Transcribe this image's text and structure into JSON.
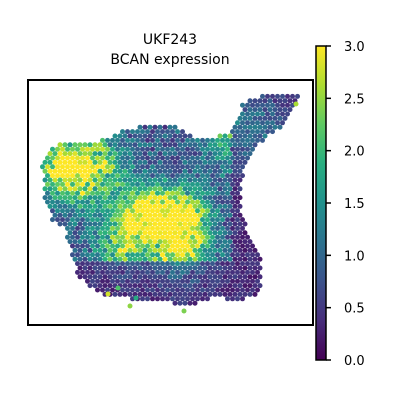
{
  "chart_data": {
    "type": "heatmap",
    "subtype": "spatial hex-spot scatter",
    "title": "UKF243",
    "subtitle": "BCAN expression",
    "colormap": "viridis",
    "color_range": [
      0.0,
      3.0
    ],
    "colorbar_ticks": [
      "0.0",
      "0.5",
      "1.0",
      "1.5",
      "2.0",
      "2.5",
      "3.0"
    ],
    "colorbar_tick_values": [
      0.0,
      0.5,
      1.0,
      1.5,
      2.0,
      2.5,
      3.0
    ],
    "axes_visible": false,
    "grid": false,
    "hotspots": [
      {
        "region": "center",
        "value": 2.9
      },
      {
        "region": "center-left",
        "value": 2.4
      },
      {
        "region": "upper-left arm",
        "value": 2.2
      },
      {
        "region": "upper-right arm",
        "value": 2.0
      },
      {
        "region": "lower-center",
        "value": 2.0
      }
    ]
  }
}
